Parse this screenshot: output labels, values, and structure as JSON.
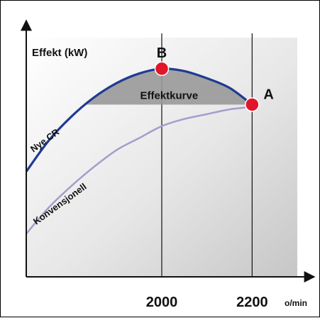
{
  "chart_data": {
    "type": "line",
    "ylabel": "Effekt (kW)",
    "x_unit": "o/min",
    "x_ticks": [
      2000,
      2200
    ],
    "xlim": [
      1700,
      2300
    ],
    "ylim": [
      0,
      100
    ],
    "series": [
      {
        "name": "Nye CR",
        "color": "#1f3a93",
        "x": [
          1700,
          1750,
          1800,
          1850,
          1900,
          1950,
          2000,
          2050,
          2100,
          2150,
          2200
        ],
        "y": [
          44,
          57,
          67,
          75,
          81,
          85,
          87,
          86,
          83,
          79,
          72
        ]
      },
      {
        "name": "Konvensjonell",
        "color": "#a79ccc",
        "x": [
          1700,
          1750,
          1800,
          1850,
          1900,
          1950,
          2000,
          2050,
          2100,
          2150,
          2200
        ],
        "y": [
          18,
          29,
          38,
          46,
          53,
          58,
          63,
          66,
          68,
          70,
          71
        ]
      }
    ],
    "shaded_region": {
      "label": "Effektkurve",
      "y": 72,
      "x_from": 1820,
      "x_to": 2200,
      "color": "#999999"
    },
    "points": [
      {
        "label": "B",
        "x": 2000,
        "y": 87,
        "color": "#e0162b"
      },
      {
        "label": "A",
        "x": 2200,
        "y": 72,
        "color": "#e0162b"
      }
    ]
  }
}
